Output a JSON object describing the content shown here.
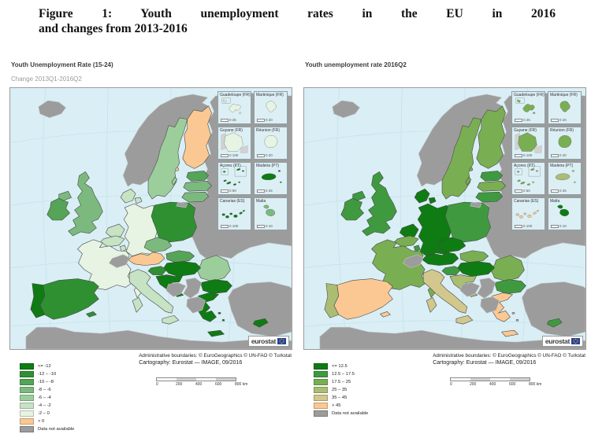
{
  "title": {
    "line1": "Figure 1: Youth unemployment rates in the EU in 2016",
    "line2": "and changes from 2013-2016"
  },
  "palette": {
    "c1": "#0e7c13",
    "c2": "#2f9032",
    "c3": "#55a458",
    "c4": "#7cb97e",
    "c5": "#9cce9c",
    "c6": "#c6e3c4",
    "c7": "#e7f3e3",
    "c8": "#fbc893",
    "r1": "#0e7c13",
    "r2": "#3f9a3f",
    "r3": "#7aae53",
    "r4": "#aabd73",
    "r5": "#d2c78d",
    "r6": "#fbc893",
    "na": "#9c9c9c"
  },
  "maps": {
    "left": {
      "title": "Youth Unemployment Rate (15-24)",
      "subtitle": "Change 2013Q1-2016Q2",
      "legend": [
        {
          "label": "<= -12",
          "class": "c1"
        },
        {
          "label": "-12 – -10",
          "class": "c2"
        },
        {
          "label": "-10 – -8",
          "class": "c3"
        },
        {
          "label": "-8 – -6",
          "class": "c4"
        },
        {
          "label": "-6 – -4",
          "class": "c5"
        },
        {
          "label": "-4 – -2",
          "class": "c6"
        },
        {
          "label": "-2 – 0",
          "class": "c7"
        },
        {
          "label": "> 0",
          "class": "c8"
        },
        {
          "label": "Data not available",
          "class": "na"
        }
      ],
      "countries": {
        "is": "na",
        "no": "na",
        "ru": "na",
        "tr": "na",
        "af": "na",
        "ch": "na",
        "ba": "na",
        "rs": "na",
        "al": "na",
        "kl": "na",
        "se": "c5",
        "fi": "c8",
        "ee": "c3",
        "lv": "c4",
        "lt": "c4",
        "dk": "c6",
        "uk": "c4",
        "ie": "c3",
        "nl": "c6",
        "be": "c6",
        "lu": "c6",
        "de": "c7",
        "fr": "c7",
        "at": "c8",
        "cz": "c4",
        "pl": "c2",
        "sk": "c3",
        "hu": "c1",
        "si": "c2",
        "hr": "c1",
        "it": "c6",
        "es": "c2",
        "pt": "c1",
        "ro": "c5",
        "bg": "c1",
        "gr": "c1",
        "cy": "c1"
      }
    },
    "right": {
      "title": "Youth unemployment rate 2016Q2",
      "subtitle": "",
      "legend": [
        {
          "label": "<= 12.5",
          "class": "r1"
        },
        {
          "label": "12.5 – 17.5",
          "class": "r2"
        },
        {
          "label": "17.5 – 25",
          "class": "r3"
        },
        {
          "label": "25 – 35",
          "class": "r4"
        },
        {
          "label": "35 – 45",
          "class": "r5"
        },
        {
          "label": "> 45",
          "class": "r6"
        },
        {
          "label": "Data not available",
          "class": "na"
        }
      ],
      "countries": {
        "is": "na",
        "no": "na",
        "ru": "na",
        "tr": "na",
        "af": "na",
        "ch": "na",
        "ba": "na",
        "rs": "na",
        "al": "na",
        "kl": "na",
        "se": "r3",
        "fi": "r3",
        "ee": "r2",
        "lv": "r3",
        "lt": "r2",
        "dk": "r1",
        "uk": "r2",
        "ie": "r2",
        "nl": "r1",
        "be": "r3",
        "lu": "r2",
        "de": "r1",
        "fr": "r3",
        "at": "r1",
        "cz": "r1",
        "pl": "r2",
        "sk": "r3",
        "hu": "r1",
        "si": "r2",
        "hr": "r4",
        "it": "r5",
        "es": "r6",
        "pt": "r4",
        "ro": "r3",
        "bg": "r2",
        "gr": "r6",
        "cy": "r2"
      }
    }
  },
  "insets": [
    {
      "key": "guadeloupe",
      "label": "Guadeloupe (FR)",
      "scale": "0   25",
      "classes": {
        "left": "c7",
        "right": "r3"
      }
    },
    {
      "key": "martinique",
      "label": "Martinique (FR)",
      "scale": "0   20",
      "classes": {
        "left": "c7",
        "right": "r3"
      }
    },
    {
      "key": "guyane",
      "label": "Guyane (FR)",
      "scale": "0   100",
      "classes": {
        "left": "c7",
        "right": "r3"
      }
    },
    {
      "key": "reunion",
      "label": "Réunion (FR)",
      "scale": "0   20",
      "classes": {
        "left": "c7",
        "right": "r3"
      }
    },
    {
      "key": "azores",
      "label": "Açores (PT)",
      "scale": "0   50",
      "classes": {
        "left": "c1",
        "right": "r3"
      }
    },
    {
      "key": "madeira",
      "label": "Madeira (PT)",
      "scale": "0   25",
      "classes": {
        "left": "c1",
        "right": "r4"
      }
    },
    {
      "key": "canarias",
      "label": "Canarias (ES)",
      "scale": "0   100",
      "classes": {
        "left": "c1",
        "right": "r6"
      }
    },
    {
      "key": "malta",
      "label": "Malta",
      "scale": "0   10",
      "classes": {
        "left": "c4",
        "right": "r1"
      }
    }
  ],
  "attribution": {
    "line1": "Administrative boundaries: © EuroGeographics © UN-FAO © Turkstat",
    "line2": "Cartography: Eurostat — IMAGE, 09/2016"
  },
  "scalebar": {
    "ticks": [
      "0",
      "200",
      "400",
      "600",
      "800 km"
    ]
  },
  "logo": {
    "text": "eurostat"
  }
}
